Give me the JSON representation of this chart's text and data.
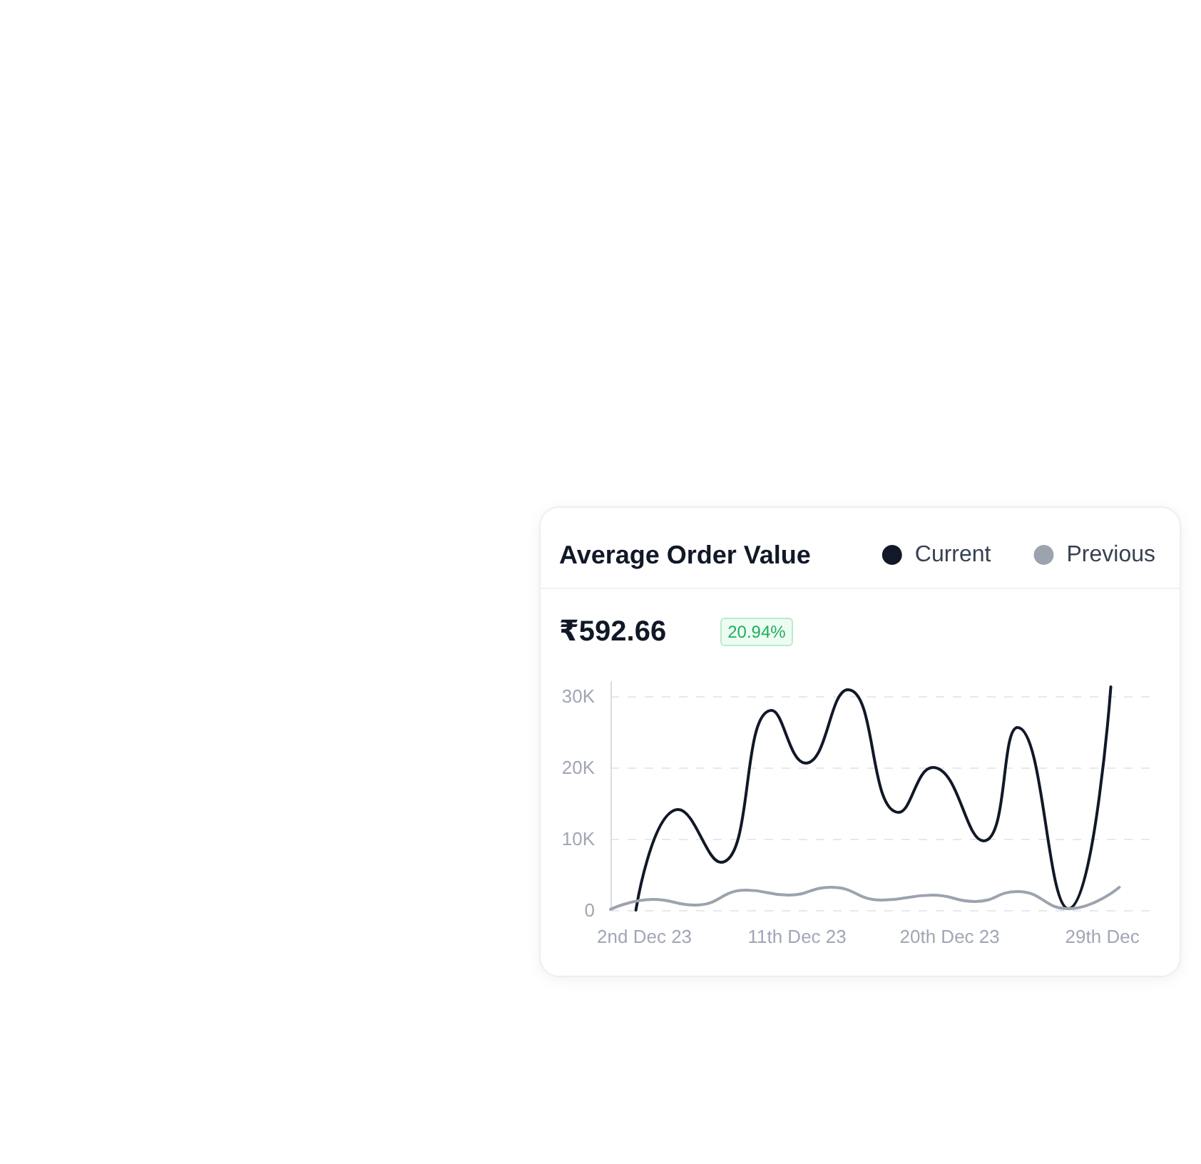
{
  "chart_data": {
    "type": "line",
    "title": "Average Order Value",
    "annotations": [
      "₹592.66",
      "20.94%"
    ],
    "xlim": [
      "--11-30",
      "--12-31T23:00"
    ],
    "xticks": [
      {
        "value": "--12-02",
        "label": "2nd Dec 23"
      },
      {
        "value": "--12-11",
        "label": "11th Dec 23"
      },
      {
        "value": "--12-20",
        "label": "20th Dec 23"
      },
      {
        "value": "--12-29",
        "label": "29th Dec"
      }
    ],
    "ylim": [
      0,
      32000
    ],
    "yticks": [
      0,
      {
        "value": 10000,
        "label": "10K"
      },
      {
        "value": 20000,
        "label": "20K"
      },
      {
        "value": 30000,
        "label": "30K"
      }
    ],
    "series": [
      {
        "name": "Current",
        "color": "#111827",
        "x": [
          "--12-01T12:00",
          "--12-04",
          "--12-06T12:00",
          "--12-09T12:00",
          "--12-11T12:00",
          "--12-14",
          "--12-17",
          "--12-19",
          "--12-22",
          "--12-24",
          "--12-27",
          "--12-29T12:00"
        ],
        "values": [
          0,
          14100,
          6700,
          28000,
          20600,
          30900,
          13700,
          20000,
          9700,
          25600,
          200,
          31300
        ]
      },
      {
        "name": "Previous",
        "color": "#9ca3af",
        "x": [
          "--11-30",
          "--12-02T12:00",
          "--12-05",
          "--12-08",
          "--12-10T12:00",
          "--12-13",
          "--12-16",
          "--12-19",
          "--12-21T12:00",
          "--12-24",
          "--12-27",
          "--12-30"
        ],
        "values": [
          100,
          1500,
          700,
          2800,
          2100,
          3200,
          1400,
          2100,
          1200,
          2600,
          200,
          3200
        ]
      }
    ],
    "grid": "y",
    "legend": "top right",
    "marker": "none"
  }
}
